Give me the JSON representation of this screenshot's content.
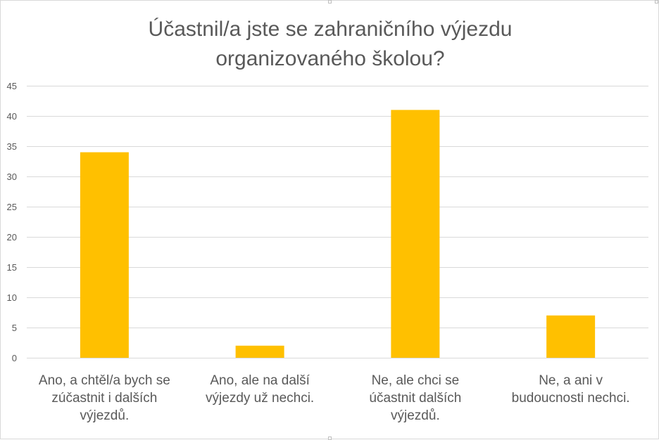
{
  "chart_data": {
    "type": "bar",
    "title": "Účastnil/a jste se zahraničního výjezdu\norganizovaného školou?",
    "xlabel": "",
    "ylabel": "",
    "categories": [
      [
        "Ano, a chtěl/a bych se",
        "zúčastnit i dalších",
        "výjezdů."
      ],
      [
        "Ano, ale na další",
        "výjezdy už nechci."
      ],
      [
        "Ne, ale chci se",
        "účastnit dalších",
        "výjezdů."
      ],
      [
        "Ne, a ani v",
        "budoucnosti nechci."
      ]
    ],
    "values": [
      34,
      2,
      41,
      7
    ],
    "ylim": [
      0,
      45
    ],
    "yticks": [
      0,
      5,
      10,
      15,
      20,
      25,
      30,
      35,
      40,
      45
    ],
    "grid": true,
    "legend": "none",
    "bar_color": "#FFC000"
  }
}
